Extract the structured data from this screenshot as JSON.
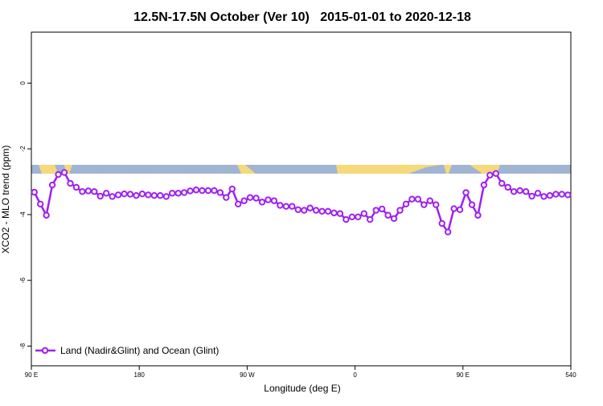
{
  "chart_data": {
    "type": "line",
    "title": "12.5N-17.5N October (Ver 10)   2015-01-01 to 2020-12-18",
    "x_label": "Longitude (deg E)",
    "y_label": "XCO2 - MLO trend (ppm)",
    "x": [
      92.5,
      97.5,
      102.5,
      107.5,
      112.5,
      117.5,
      122.5,
      127.5,
      132.5,
      137.5,
      142.5,
      147.5,
      152.5,
      157.5,
      162.5,
      167.5,
      172.5,
      177.5,
      182.5,
      187.5,
      192.5,
      197.5,
      202.5,
      207.5,
      212.5,
      217.5,
      222.5,
      227.5,
      232.5,
      237.5,
      242.5,
      247.5,
      252.5,
      257.5,
      262.5,
      267.5,
      272.5,
      277.5,
      282.5,
      287.5,
      292.5,
      297.5,
      302.5,
      307.5,
      312.5,
      317.5,
      322.5,
      327.5,
      332.5,
      337.5,
      342.5,
      347.5,
      352.5,
      357.5,
      362.5,
      367.5,
      372.5,
      377.5,
      382.5,
      387.5,
      392.5,
      397.5,
      402.5,
      407.5,
      412.5,
      417.5,
      422.5,
      427.5,
      432.5,
      437.5,
      442.5,
      447.5,
      452.5,
      457.5,
      462.5,
      467.5,
      472.5,
      477.5,
      482.5,
      487.5,
      492.5,
      497.5,
      502.5,
      507.5,
      512.5,
      517.5,
      522.5,
      527.5,
      532.5,
      537.5
    ],
    "series": [
      {
        "name": "Land (Nadir&Glint) and Ocean (Glint)",
        "color": "#a020f0",
        "values": [
          -3.32,
          -3.68,
          -4.02,
          -3.1,
          -2.78,
          -2.72,
          -3.05,
          -3.17,
          -3.3,
          -3.28,
          -3.3,
          -3.44,
          -3.35,
          -3.45,
          -3.4,
          -3.37,
          -3.38,
          -3.42,
          -3.37,
          -3.4,
          -3.42,
          -3.42,
          -3.45,
          -3.35,
          -3.35,
          -3.33,
          -3.28,
          -3.25,
          -3.27,
          -3.27,
          -3.27,
          -3.33,
          -3.48,
          -3.22,
          -3.68,
          -3.58,
          -3.48,
          -3.5,
          -3.62,
          -3.55,
          -3.58,
          -3.72,
          -3.75,
          -3.75,
          -3.85,
          -3.87,
          -3.8,
          -3.87,
          -3.9,
          -3.9,
          -3.95,
          -3.97,
          -4.15,
          -4.07,
          -4.07,
          -3.97,
          -4.15,
          -3.87,
          -3.83,
          -4.02,
          -4.12,
          -3.87,
          -3.68,
          -3.53,
          -3.53,
          -3.7,
          -3.58,
          -3.7,
          -4.27,
          -4.53,
          -3.82,
          -3.85,
          -3.33,
          -3.7,
          -4.02,
          -3.1,
          -2.8,
          -2.75,
          -3.05,
          -3.17,
          -3.3,
          -3.27,
          -3.3,
          -3.44,
          -3.35,
          -3.45,
          -3.42,
          -3.38,
          -3.38,
          -3.4
        ]
      }
    ],
    "xlim": [
      90,
      540
    ],
    "xticks": [
      {
        "value": 90,
        "label": "90 E"
      },
      180,
      {
        "value": 270,
        "label": "90 W"
      },
      {
        "value": 360,
        "label": "0"
      },
      {
        "value": 450,
        "label": "90 E"
      },
      540
    ],
    "ylim": [
      -8.6,
      1.55
    ],
    "yticks": [
      0,
      -2,
      -4,
      -6,
      -8
    ],
    "legend": "bottom-left"
  }
}
